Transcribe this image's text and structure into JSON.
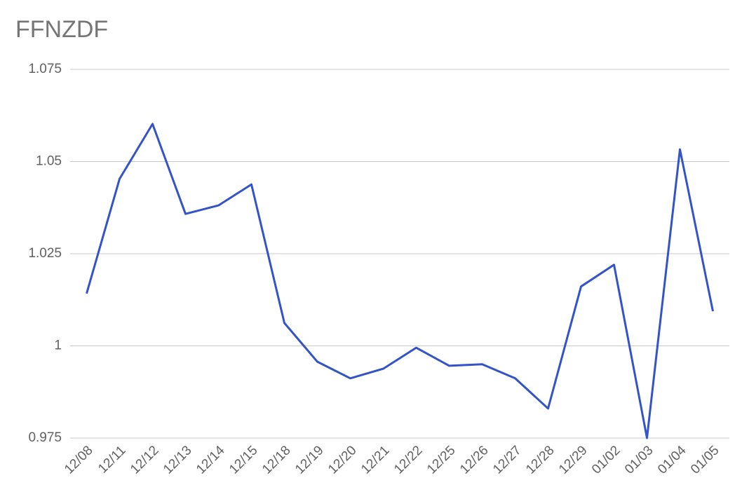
{
  "chart_data": {
    "type": "line",
    "title": "FFNZDF",
    "categories": [
      "12/08",
      "12/11",
      "12/12",
      "12/13",
      "12/14",
      "12/15",
      "12/18",
      "12/19",
      "12/20",
      "12/21",
      "12/22",
      "12/25",
      "12/26",
      "12/27",
      "12/28",
      "12/29",
      "01/02",
      "01/03",
      "01/04",
      "01/05"
    ],
    "values": [
      1.0142,
      1.0453,
      1.0602,
      1.0358,
      1.0381,
      1.0438,
      1.0062,
      0.9957,
      0.9912,
      0.9938,
      0.9995,
      0.9946,
      0.995,
      0.9912,
      0.983,
      1.0161,
      1.022,
      0.975,
      1.0533,
      1.0094
    ],
    "color": "#3353c8",
    "ylim": [
      0.975,
      1.075
    ],
    "yticks": [
      0.975,
      1,
      1.025,
      1.05,
      1.075
    ],
    "grid": true
  }
}
